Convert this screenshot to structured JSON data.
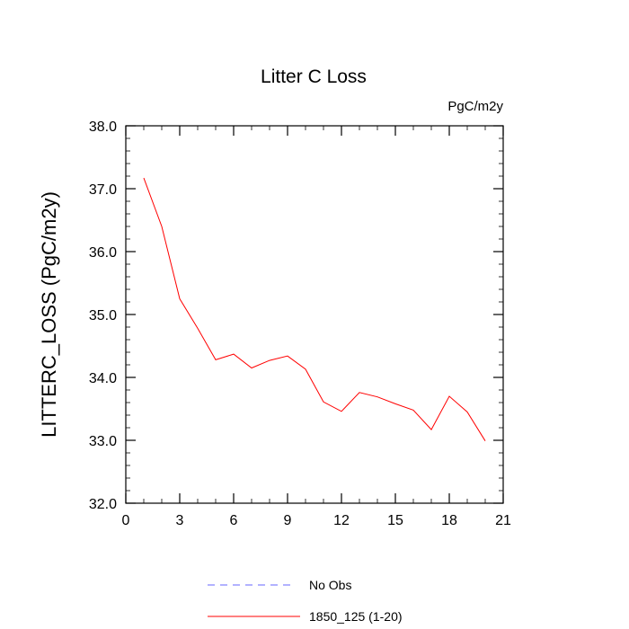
{
  "chart_data": {
    "type": "line",
    "title": "Litter C Loss",
    "units": "PgC/m2y",
    "xlabel": "",
    "ylabel": "LITTERC_LOSS  (PgC/m2y)",
    "xlim": [
      0,
      21
    ],
    "ylim": [
      32.0,
      38.0
    ],
    "xticks": [
      "0",
      "3",
      "6",
      "9",
      "12",
      "15",
      "18",
      "21"
    ],
    "yticks": [
      "32.0",
      "33.0",
      "34.0",
      "35.0",
      "36.0",
      "37.0",
      "38.0"
    ],
    "grid": false,
    "legend_position": "bottom",
    "series": [
      {
        "name": "No Obs",
        "color": "#6666ff",
        "dash": "dashed",
        "x": [],
        "y": []
      },
      {
        "name": "1850_125 (1-20)",
        "color": "#ff0000",
        "dash": "solid",
        "x": [
          1,
          2,
          3,
          4,
          5,
          6,
          7,
          8,
          9,
          10,
          11,
          12,
          13,
          14,
          15,
          16,
          17,
          18,
          19,
          20
        ],
        "y": [
          37.17,
          36.4,
          35.25,
          34.78,
          34.28,
          34.37,
          34.15,
          34.27,
          34.34,
          34.13,
          33.61,
          33.46,
          33.76,
          33.69,
          33.58,
          33.48,
          33.17,
          33.7,
          33.45,
          32.99
        ]
      }
    ]
  }
}
